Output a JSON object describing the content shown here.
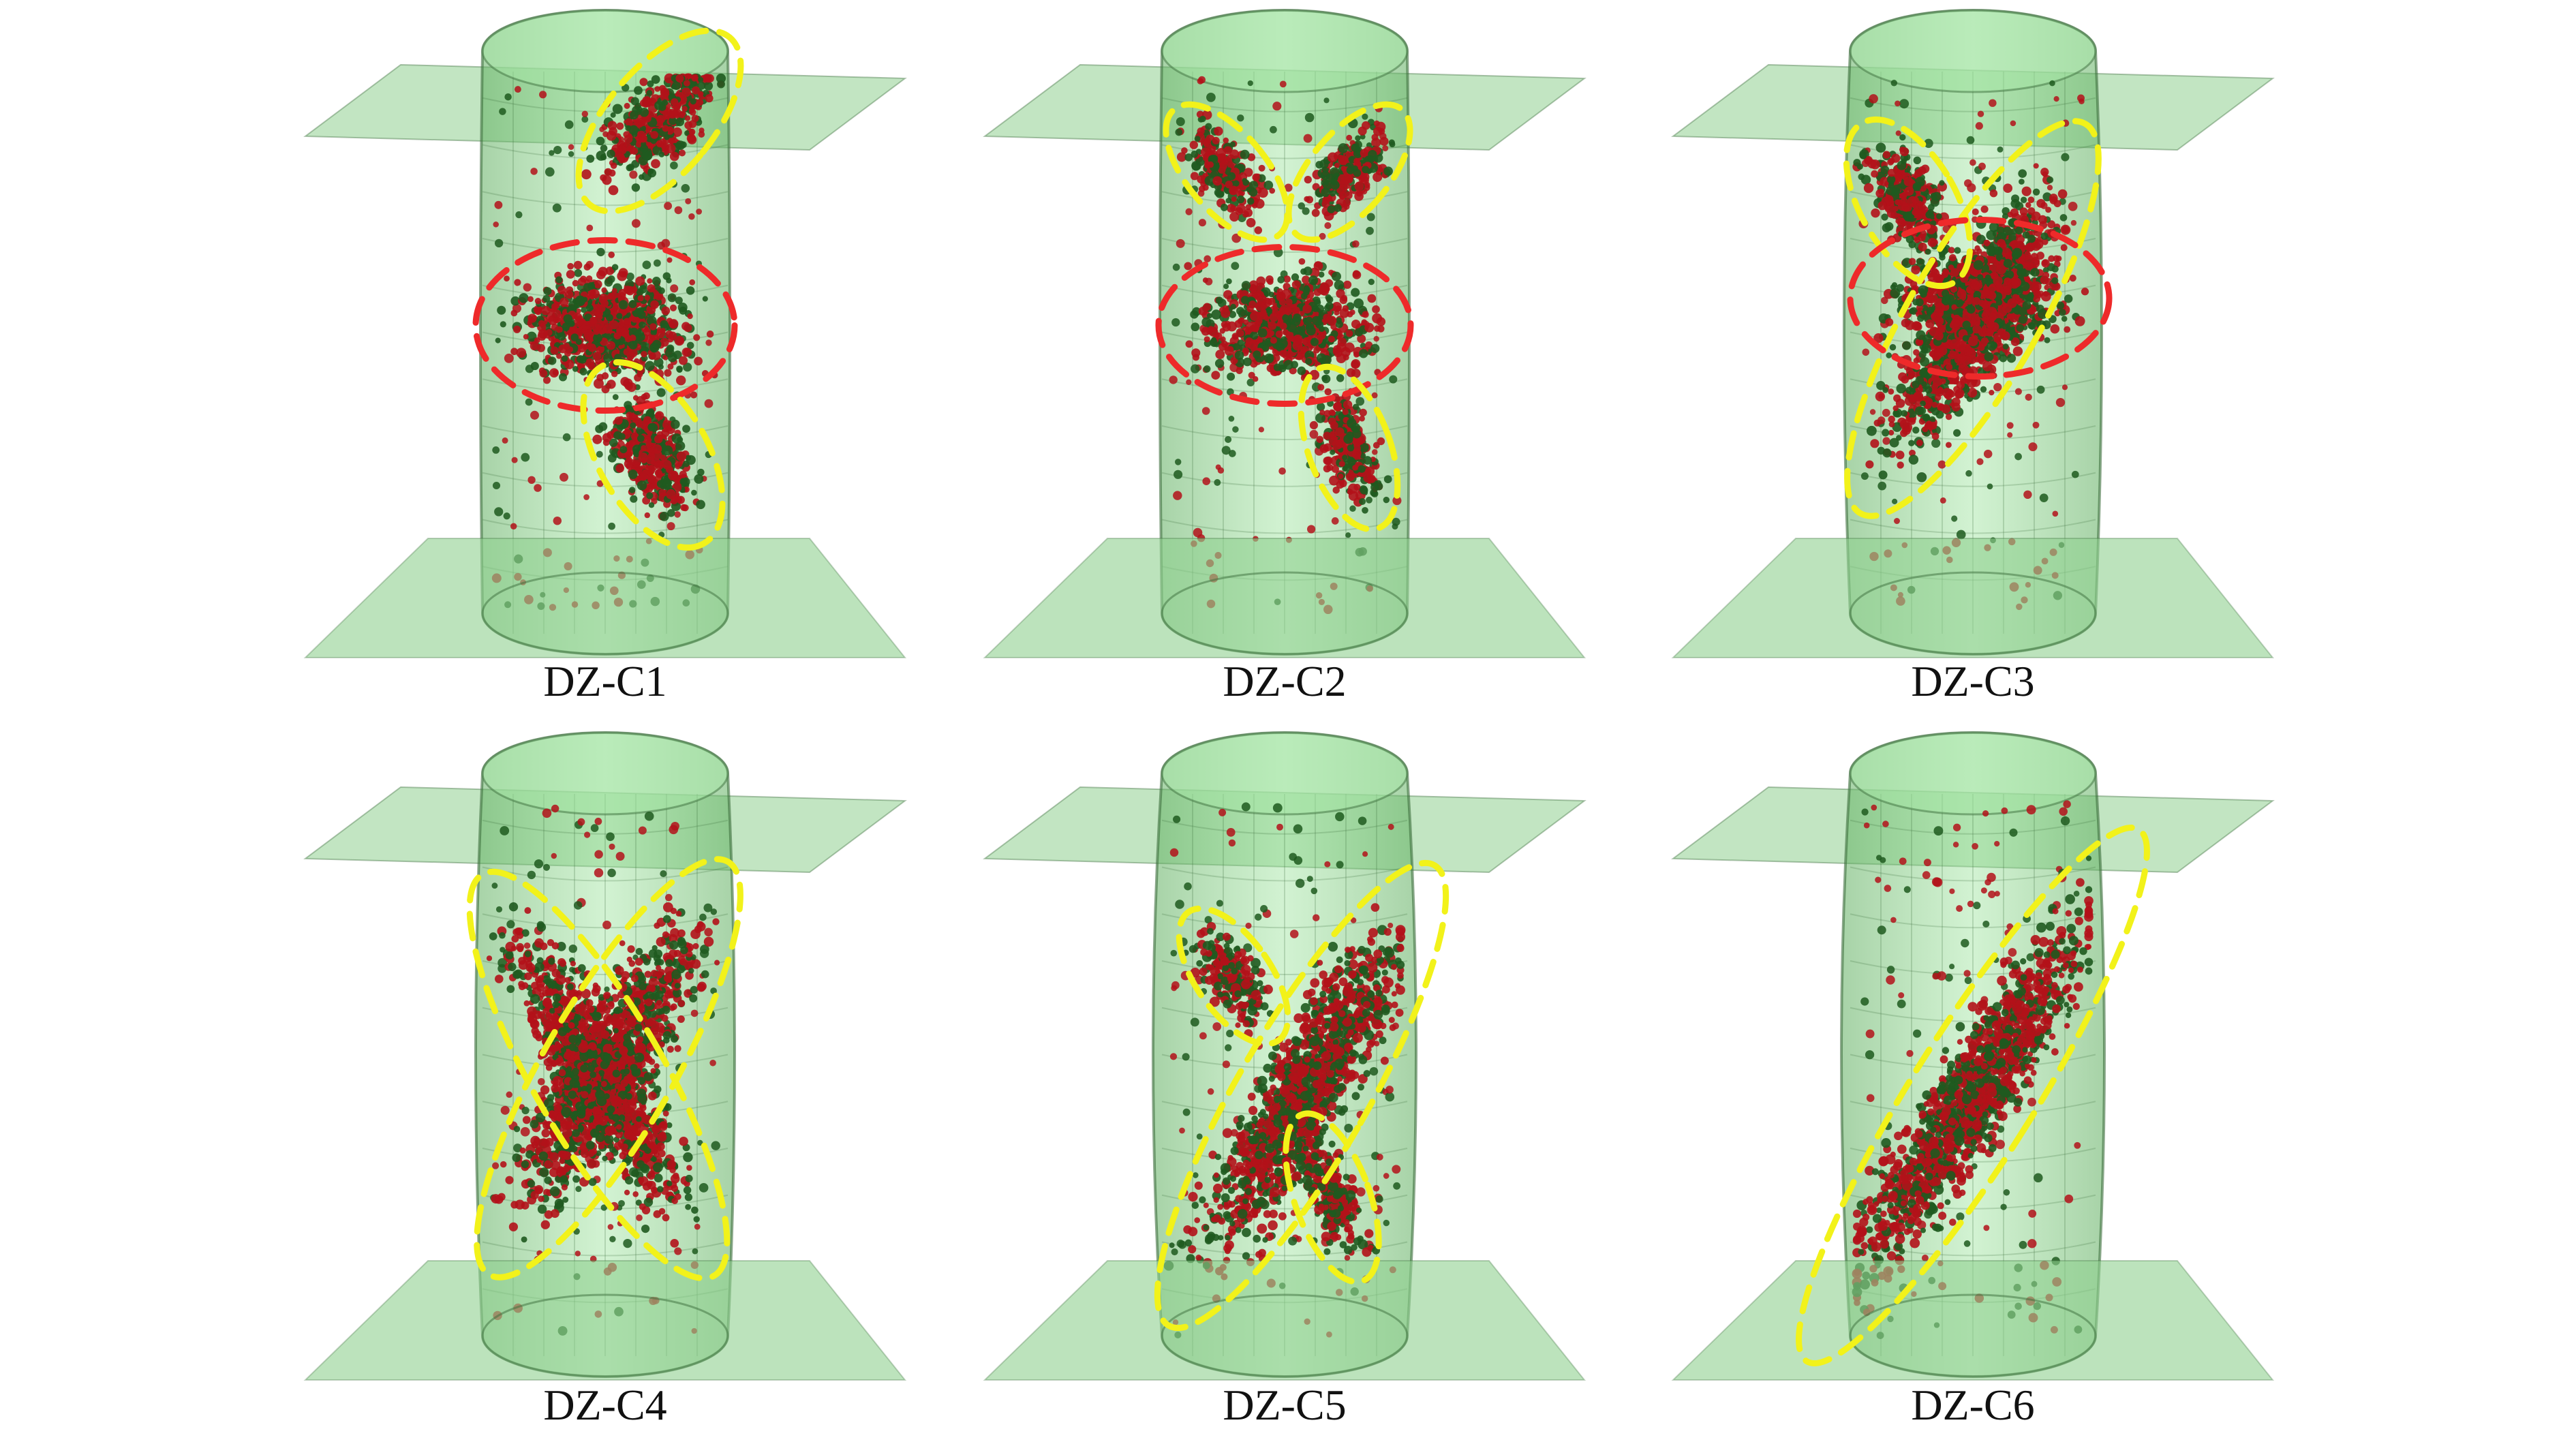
{
  "figure": {
    "panels": [
      {
        "label": "DZ-C1",
        "pattern": "x-shaped with central zone",
        "zones": [
          "yellow-upper-right",
          "red-central",
          "yellow-lower-right"
        ]
      },
      {
        "label": "DZ-C2",
        "pattern": "x-shaped with central zone",
        "zones": [
          "yellow-upper-left",
          "yellow-upper-right",
          "red-central",
          "yellow-lower-right"
        ]
      },
      {
        "label": "DZ-C3",
        "pattern": "x-shaped with central zone",
        "zones": [
          "yellow-upper-left",
          "yellow-diagonal",
          "red-central"
        ]
      },
      {
        "label": "DZ-C4",
        "pattern": "x-shaped conjugate",
        "zones": [
          "yellow-diagonal-left",
          "yellow-diagonal-right"
        ]
      },
      {
        "label": "DZ-C5",
        "pattern": "x-shaped conjugate",
        "zones": [
          "yellow-upper-left",
          "yellow-diagonal",
          "yellow-lower-right"
        ]
      },
      {
        "label": "DZ-C6",
        "pattern": "single inclined band",
        "zones": [
          "yellow-diagonal"
        ]
      }
    ],
    "colors": {
      "specimen_fill": "#7ccf7c",
      "specimen_edge": "#3c6e3c",
      "platen_fill": "#90d090",
      "event_red": "#b3121a",
      "event_green": "#1f5a1f",
      "yellow_zone": "#f2f21a",
      "red_zone": "#ee2a2a"
    }
  }
}
